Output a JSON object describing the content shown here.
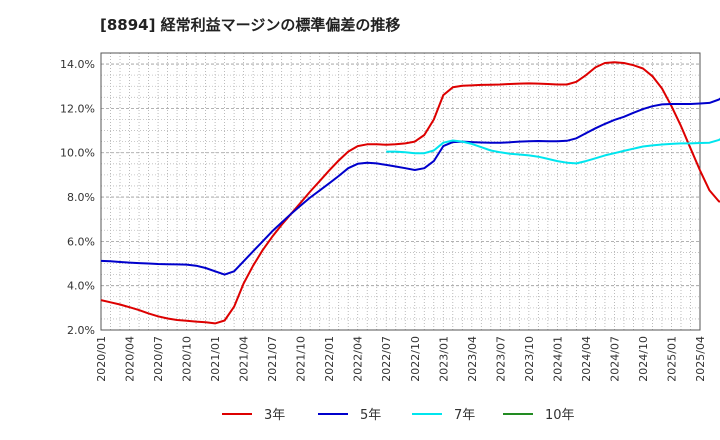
{
  "chart_data": {
    "type": "line",
    "title": "[8894]  経常利益マージンの標準偏差の推移",
    "xlabel": "",
    "ylabel": "",
    "ylim": [
      2.0,
      14.5
    ],
    "y_ticks": [
      "2.0%",
      "4.0%",
      "6.0%",
      "8.0%",
      "10.0%",
      "12.0%",
      "14.0%"
    ],
    "y_tick_values": [
      2,
      4,
      6,
      8,
      10,
      12,
      14
    ],
    "x_ticks": [
      "2020/01",
      "2020/04",
      "2020/07",
      "2020/10",
      "2021/01",
      "2021/04",
      "2021/07",
      "2021/10",
      "2022/01",
      "2022/04",
      "2022/07",
      "2022/10",
      "2023/01",
      "2023/04",
      "2023/07",
      "2023/10",
      "2024/01",
      "2024/04",
      "2024/07",
      "2024/10",
      "2025/01",
      "2025/04"
    ],
    "grid": true,
    "legend_position": "bottom",
    "series": [
      {
        "name": "3年",
        "color": "#dd0000",
        "points": [
          [
            0,
            3.35
          ],
          [
            1,
            3.25
          ],
          [
            2,
            3.15
          ],
          [
            3,
            3.03
          ],
          [
            4,
            2.9
          ],
          [
            5,
            2.75
          ],
          [
            6,
            2.62
          ],
          [
            7,
            2.52
          ],
          [
            8,
            2.45
          ],
          [
            9,
            2.42
          ],
          [
            10,
            2.38
          ],
          [
            11,
            2.35
          ],
          [
            12,
            2.3
          ],
          [
            13,
            2.43
          ],
          [
            14,
            3.05
          ],
          [
            15,
            4.1
          ],
          [
            16,
            4.9
          ],
          [
            17,
            5.6
          ],
          [
            18,
            6.2
          ],
          [
            19,
            6.75
          ],
          [
            20,
            7.25
          ],
          [
            21,
            7.75
          ],
          [
            22,
            8.25
          ],
          [
            23,
            8.72
          ],
          [
            24,
            9.2
          ],
          [
            25,
            9.65
          ],
          [
            26,
            10.05
          ],
          [
            27,
            10.3
          ],
          [
            28,
            10.38
          ],
          [
            29,
            10.38
          ],
          [
            30,
            10.36
          ],
          [
            31,
            10.38
          ],
          [
            32,
            10.42
          ],
          [
            33,
            10.5
          ],
          [
            34,
            10.8
          ],
          [
            35,
            11.5
          ],
          [
            36,
            12.6
          ],
          [
            37,
            12.95
          ],
          [
            38,
            13.02
          ],
          [
            39,
            13.04
          ],
          [
            40,
            13.06
          ],
          [
            41,
            13.07
          ],
          [
            42,
            13.08
          ],
          [
            43,
            13.1
          ],
          [
            44,
            13.12
          ],
          [
            45,
            13.13
          ],
          [
            46,
            13.12
          ],
          [
            47,
            13.1
          ],
          [
            48,
            13.08
          ],
          [
            49,
            13.08
          ],
          [
            50,
            13.2
          ],
          [
            51,
            13.5
          ],
          [
            52,
            13.85
          ],
          [
            53,
            14.05
          ],
          [
            54,
            14.08
          ],
          [
            55,
            14.05
          ],
          [
            56,
            13.95
          ],
          [
            57,
            13.8
          ],
          [
            58,
            13.45
          ],
          [
            59,
            12.9
          ],
          [
            60,
            12.1
          ],
          [
            61,
            11.2
          ],
          [
            62,
            10.2
          ],
          [
            63,
            9.2
          ],
          [
            64,
            8.3
          ],
          [
            65,
            7.8
          ],
          [
            66,
            7.8
          ]
        ]
      },
      {
        "name": "5年",
        "color": "#0000cc",
        "points": [
          [
            0,
            5.12
          ],
          [
            1,
            5.1
          ],
          [
            2,
            5.07
          ],
          [
            3,
            5.04
          ],
          [
            4,
            5.02
          ],
          [
            5,
            5.0
          ],
          [
            6,
            4.98
          ],
          [
            7,
            4.97
          ],
          [
            8,
            4.96
          ],
          [
            9,
            4.95
          ],
          [
            10,
            4.9
          ],
          [
            11,
            4.8
          ],
          [
            12,
            4.65
          ],
          [
            13,
            4.5
          ],
          [
            14,
            4.65
          ],
          [
            15,
            5.1
          ],
          [
            16,
            5.55
          ],
          [
            17,
            6.0
          ],
          [
            18,
            6.45
          ],
          [
            19,
            6.85
          ],
          [
            20,
            7.25
          ],
          [
            21,
            7.62
          ],
          [
            22,
            7.98
          ],
          [
            23,
            8.3
          ],
          [
            24,
            8.62
          ],
          [
            25,
            8.95
          ],
          [
            26,
            9.3
          ],
          [
            27,
            9.5
          ],
          [
            28,
            9.55
          ],
          [
            29,
            9.52
          ],
          [
            30,
            9.45
          ],
          [
            31,
            9.38
          ],
          [
            32,
            9.3
          ],
          [
            33,
            9.22
          ],
          [
            34,
            9.3
          ],
          [
            35,
            9.62
          ],
          [
            36,
            10.3
          ],
          [
            37,
            10.48
          ],
          [
            38,
            10.5
          ],
          [
            39,
            10.48
          ],
          [
            40,
            10.46
          ],
          [
            41,
            10.45
          ],
          [
            42,
            10.45
          ],
          [
            43,
            10.47
          ],
          [
            44,
            10.5
          ],
          [
            45,
            10.52
          ],
          [
            46,
            10.53
          ],
          [
            47,
            10.52
          ],
          [
            48,
            10.52
          ],
          [
            49,
            10.54
          ],
          [
            50,
            10.65
          ],
          [
            51,
            10.88
          ],
          [
            52,
            11.1
          ],
          [
            53,
            11.3
          ],
          [
            54,
            11.48
          ],
          [
            55,
            11.62
          ],
          [
            56,
            11.8
          ],
          [
            57,
            11.97
          ],
          [
            58,
            12.1
          ],
          [
            59,
            12.18
          ],
          [
            60,
            12.2
          ],
          [
            61,
            12.2
          ],
          [
            62,
            12.2
          ],
          [
            63,
            12.22
          ],
          [
            64,
            12.25
          ],
          [
            65,
            12.4
          ],
          [
            66,
            12.73
          ]
        ]
      },
      {
        "name": "7年",
        "color": "#00e5ee",
        "points": [
          [
            30,
            10.05
          ],
          [
            31,
            10.05
          ],
          [
            32,
            10.02
          ],
          [
            33,
            9.98
          ],
          [
            34,
            9.98
          ],
          [
            35,
            10.1
          ],
          [
            36,
            10.45
          ],
          [
            37,
            10.55
          ],
          [
            38,
            10.5
          ],
          [
            39,
            10.4
          ],
          [
            40,
            10.25
          ],
          [
            41,
            10.1
          ],
          [
            42,
            10.02
          ],
          [
            43,
            9.95
          ],
          [
            44,
            9.92
          ],
          [
            45,
            9.88
          ],
          [
            46,
            9.82
          ],
          [
            47,
            9.72
          ],
          [
            48,
            9.62
          ],
          [
            49,
            9.55
          ],
          [
            50,
            9.52
          ],
          [
            51,
            9.62
          ],
          [
            52,
            9.75
          ],
          [
            53,
            9.88
          ],
          [
            54,
            9.98
          ],
          [
            55,
            10.08
          ],
          [
            56,
            10.18
          ],
          [
            57,
            10.28
          ],
          [
            58,
            10.33
          ],
          [
            59,
            10.37
          ],
          [
            60,
            10.4
          ],
          [
            61,
            10.42
          ],
          [
            62,
            10.42
          ],
          [
            63,
            10.44
          ],
          [
            64,
            10.45
          ],
          [
            65,
            10.58
          ],
          [
            66,
            10.85
          ]
        ]
      },
      {
        "name": "10年",
        "color": "#228b22",
        "points": []
      }
    ]
  }
}
